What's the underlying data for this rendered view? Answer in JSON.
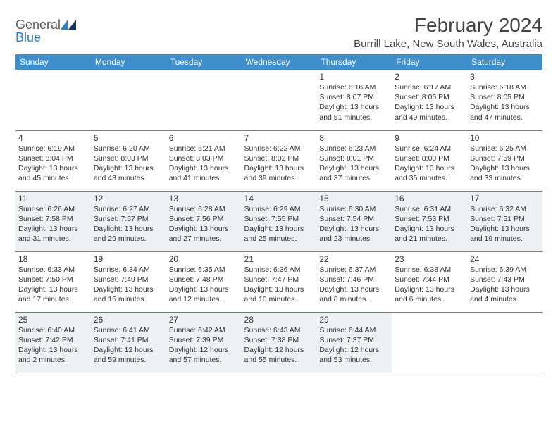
{
  "logo": {
    "line1": "General",
    "line2": "Blue"
  },
  "title": "February 2024",
  "location": "Burrill Lake, New South Wales, Australia",
  "colors": {
    "header_bg": "#3d8ecb",
    "header_fg": "#ffffff",
    "rule": "#3d8ecb",
    "shade": "#eef1f3",
    "text": "#333333"
  },
  "weekdays": [
    "Sunday",
    "Monday",
    "Tuesday",
    "Wednesday",
    "Thursday",
    "Friday",
    "Saturday"
  ],
  "weeks": [
    [
      {
        "n": "",
        "lines": []
      },
      {
        "n": "",
        "lines": []
      },
      {
        "n": "",
        "lines": []
      },
      {
        "n": "",
        "lines": []
      },
      {
        "n": "1",
        "lines": [
          "Sunrise: 6:16 AM",
          "Sunset: 8:07 PM",
          "Daylight: 13 hours and 51 minutes."
        ]
      },
      {
        "n": "2",
        "lines": [
          "Sunrise: 6:17 AM",
          "Sunset: 8:06 PM",
          "Daylight: 13 hours and 49 minutes."
        ]
      },
      {
        "n": "3",
        "lines": [
          "Sunrise: 6:18 AM",
          "Sunset: 8:05 PM",
          "Daylight: 13 hours and 47 minutes."
        ]
      }
    ],
    [
      {
        "n": "4",
        "lines": [
          "Sunrise: 6:19 AM",
          "Sunset: 8:04 PM",
          "Daylight: 13 hours and 45 minutes."
        ]
      },
      {
        "n": "5",
        "lines": [
          "Sunrise: 6:20 AM",
          "Sunset: 8:03 PM",
          "Daylight: 13 hours and 43 minutes."
        ]
      },
      {
        "n": "6",
        "lines": [
          "Sunrise: 6:21 AM",
          "Sunset: 8:03 PM",
          "Daylight: 13 hours and 41 minutes."
        ]
      },
      {
        "n": "7",
        "lines": [
          "Sunrise: 6:22 AM",
          "Sunset: 8:02 PM",
          "Daylight: 13 hours and 39 minutes."
        ]
      },
      {
        "n": "8",
        "lines": [
          "Sunrise: 6:23 AM",
          "Sunset: 8:01 PM",
          "Daylight: 13 hours and 37 minutes."
        ]
      },
      {
        "n": "9",
        "lines": [
          "Sunrise: 6:24 AM",
          "Sunset: 8:00 PM",
          "Daylight: 13 hours and 35 minutes."
        ]
      },
      {
        "n": "10",
        "lines": [
          "Sunrise: 6:25 AM",
          "Sunset: 7:59 PM",
          "Daylight: 13 hours and 33 minutes."
        ]
      }
    ],
    [
      {
        "n": "11",
        "s": true,
        "lines": [
          "Sunrise: 6:26 AM",
          "Sunset: 7:58 PM",
          "Daylight: 13 hours and 31 minutes."
        ]
      },
      {
        "n": "12",
        "s": true,
        "lines": [
          "Sunrise: 6:27 AM",
          "Sunset: 7:57 PM",
          "Daylight: 13 hours and 29 minutes."
        ]
      },
      {
        "n": "13",
        "s": true,
        "lines": [
          "Sunrise: 6:28 AM",
          "Sunset: 7:56 PM",
          "Daylight: 13 hours and 27 minutes."
        ]
      },
      {
        "n": "14",
        "s": true,
        "lines": [
          "Sunrise: 6:29 AM",
          "Sunset: 7:55 PM",
          "Daylight: 13 hours and 25 minutes."
        ]
      },
      {
        "n": "15",
        "s": true,
        "lines": [
          "Sunrise: 6:30 AM",
          "Sunset: 7:54 PM",
          "Daylight: 13 hours and 23 minutes."
        ]
      },
      {
        "n": "16",
        "s": true,
        "lines": [
          "Sunrise: 6:31 AM",
          "Sunset: 7:53 PM",
          "Daylight: 13 hours and 21 minutes."
        ]
      },
      {
        "n": "17",
        "s": true,
        "lines": [
          "Sunrise: 6:32 AM",
          "Sunset: 7:51 PM",
          "Daylight: 13 hours and 19 minutes."
        ]
      }
    ],
    [
      {
        "n": "18",
        "lines": [
          "Sunrise: 6:33 AM",
          "Sunset: 7:50 PM",
          "Daylight: 13 hours and 17 minutes."
        ]
      },
      {
        "n": "19",
        "lines": [
          "Sunrise: 6:34 AM",
          "Sunset: 7:49 PM",
          "Daylight: 13 hours and 15 minutes."
        ]
      },
      {
        "n": "20",
        "lines": [
          "Sunrise: 6:35 AM",
          "Sunset: 7:48 PM",
          "Daylight: 13 hours and 12 minutes."
        ]
      },
      {
        "n": "21",
        "lines": [
          "Sunrise: 6:36 AM",
          "Sunset: 7:47 PM",
          "Daylight: 13 hours and 10 minutes."
        ]
      },
      {
        "n": "22",
        "lines": [
          "Sunrise: 6:37 AM",
          "Sunset: 7:46 PM",
          "Daylight: 13 hours and 8 minutes."
        ]
      },
      {
        "n": "23",
        "lines": [
          "Sunrise: 6:38 AM",
          "Sunset: 7:44 PM",
          "Daylight: 13 hours and 6 minutes."
        ]
      },
      {
        "n": "24",
        "lines": [
          "Sunrise: 6:39 AM",
          "Sunset: 7:43 PM",
          "Daylight: 13 hours and 4 minutes."
        ]
      }
    ],
    [
      {
        "n": "25",
        "s": true,
        "lines": [
          "Sunrise: 6:40 AM",
          "Sunset: 7:42 PM",
          "Daylight: 13 hours and 2 minutes."
        ]
      },
      {
        "n": "26",
        "s": true,
        "lines": [
          "Sunrise: 6:41 AM",
          "Sunset: 7:41 PM",
          "Daylight: 12 hours and 59 minutes."
        ]
      },
      {
        "n": "27",
        "s": true,
        "lines": [
          "Sunrise: 6:42 AM",
          "Sunset: 7:39 PM",
          "Daylight: 12 hours and 57 minutes."
        ]
      },
      {
        "n": "28",
        "s": true,
        "lines": [
          "Sunrise: 6:43 AM",
          "Sunset: 7:38 PM",
          "Daylight: 12 hours and 55 minutes."
        ]
      },
      {
        "n": "29",
        "s": true,
        "lines": [
          "Sunrise: 6:44 AM",
          "Sunset: 7:37 PM",
          "Daylight: 12 hours and 53 minutes."
        ]
      },
      {
        "n": "",
        "lines": []
      },
      {
        "n": "",
        "lines": []
      }
    ]
  ]
}
